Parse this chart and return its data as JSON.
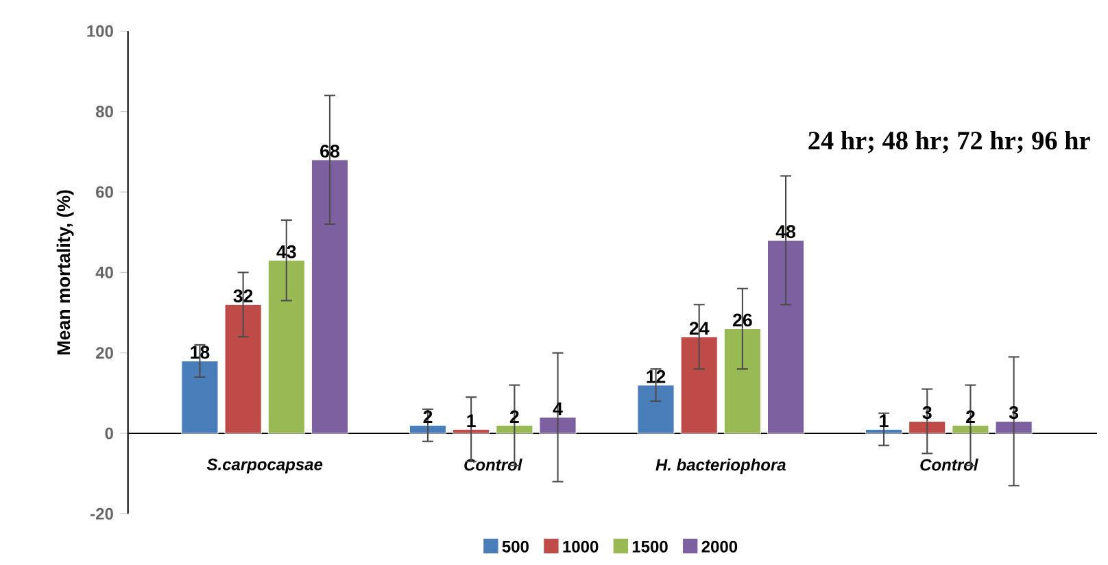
{
  "chart_data": {
    "type": "bar",
    "ylabel": "Mean mortality, (%)",
    "annotations": [
      "24 hr; 48 hr; 72 hr; 96 hr"
    ],
    "categories": [
      "S.carpocapsae",
      "Control",
      "H. bacteriophora",
      "Control"
    ],
    "series": [
      {
        "name": "500",
        "color": "#4a7ebb",
        "values": [
          18,
          2,
          12,
          1
        ],
        "errors": [
          4,
          4,
          4,
          4
        ]
      },
      {
        "name": "1000",
        "color": "#be4b48",
        "values": [
          32,
          1,
          24,
          3
        ],
        "errors": [
          8,
          8,
          8,
          8
        ]
      },
      {
        "name": "1500",
        "color": "#98b954",
        "values": [
          43,
          2,
          26,
          2
        ],
        "errors": [
          10,
          10,
          10,
          10
        ]
      },
      {
        "name": "2000",
        "color": "#7d60a0",
        "values": [
          68,
          4,
          48,
          3
        ],
        "errors": [
          16,
          16,
          16,
          16
        ]
      }
    ],
    "ylim": [
      -20,
      100
    ],
    "yticks": [
      -20,
      0,
      20,
      40,
      60,
      80,
      100
    ],
    "data_labels": true,
    "legend": "bottom",
    "grid": false
  }
}
